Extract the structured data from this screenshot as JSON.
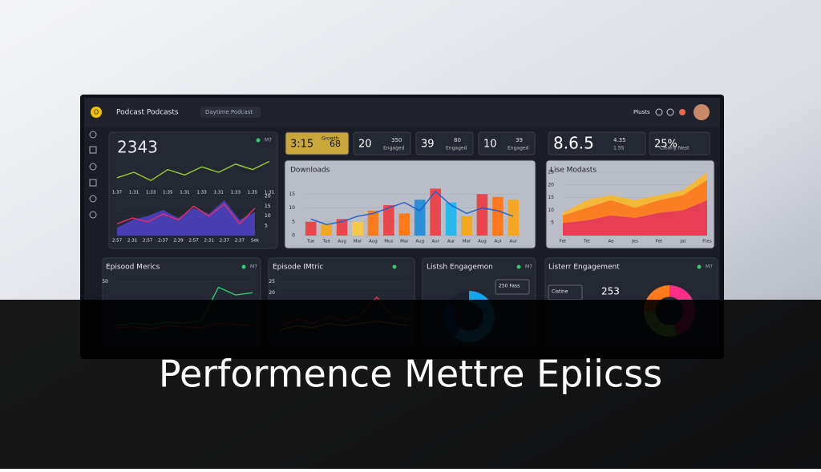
{
  "header": {
    "logo": "O",
    "title": "Podcast Podcasts",
    "search": "Daytime Podcast",
    "user": "Plusts"
  },
  "stats": [
    {
      "value": "3:15",
      "label": "Growth",
      "extra": "68"
    },
    {
      "value": "20",
      "extra": "350",
      "label": "Engaged"
    },
    {
      "value": "39",
      "extra": "80",
      "label": "Engaged"
    },
    {
      "value": "10",
      "extra": "39",
      "label": "Engaged"
    },
    {
      "value": "8.6.5",
      "label": "1.5S",
      "extra": "4.35"
    },
    {
      "value": "25%",
      "label": "Clearly Nest"
    }
  ],
  "chart_data": [
    {
      "type": "line",
      "title": "2343",
      "badge": "M7",
      "categories": [
        "1:37",
        "1:31",
        "1:33",
        "1:35",
        "1:31",
        "1:33",
        "1:31",
        "1:33",
        "1:35",
        "1:31"
      ],
      "series": [
        {
          "color": "#9acd32",
          "values": [
            3,
            5,
            2,
            6,
            4,
            7,
            5,
            8,
            6,
            9
          ]
        }
      ],
      "ylim": [
        0,
        10
      ]
    },
    {
      "type": "area",
      "categories": [
        "2:57",
        "2:31",
        "2:57",
        "2:37",
        "2:39",
        "2:57",
        "2:31",
        "2:37",
        "2:37",
        "Sek"
      ],
      "series": [
        {
          "color": "#4b3fb8",
          "fill": true,
          "values": [
            4,
            8,
            10,
            13,
            9,
            14,
            11,
            18,
            8,
            12
          ]
        },
        {
          "color": "#e0306a",
          "values": [
            6,
            9,
            7,
            11,
            8,
            15,
            10,
            16,
            6,
            14
          ]
        }
      ],
      "ylim": [
        0,
        20
      ],
      "yticks": [
        5,
        10,
        15,
        20
      ]
    },
    {
      "type": "bar",
      "title": "Downloads",
      "categories": [
        "Tue",
        "Tue",
        "Aug",
        "Mar",
        "Aug",
        "Mus",
        "Mar",
        "Aug",
        "Aur",
        "Aur",
        "Mar",
        "Aug",
        "Aul",
        "Aur"
      ],
      "series": [
        {
          "colors": [
            "#e8474c",
            "#f5a623",
            "#e8474c",
            "#f7c948",
            "#ff7a1a",
            "#e8474c",
            "#ff7a1a",
            "#2a8fd6",
            "#e8474c",
            "#29b6e8",
            "#f5a623",
            "#e8474c",
            "#ff7a1a",
            "#f5a623"
          ],
          "values": [
            5,
            4,
            6,
            5,
            9,
            11,
            8,
            13,
            17,
            12,
            7,
            15,
            14,
            13
          ]
        },
        {
          "color": "#1f5fd1",
          "line": true,
          "values": [
            6,
            4,
            5,
            7,
            8,
            10,
            12,
            9,
            16,
            11,
            8,
            10,
            9,
            7
          ]
        }
      ],
      "ylim": [
        0,
        20
      ],
      "yticks": [
        0,
        5,
        10,
        15
      ]
    },
    {
      "type": "area",
      "title": "Lise Modasts",
      "stacked": true,
      "categories": [
        "Fet",
        "Tet",
        "Ae",
        "Jes",
        "Fet",
        "Jat",
        "Ftes"
      ],
      "series": [
        {
          "color": "#e8384f",
          "fill": true,
          "values": [
            5,
            6,
            8,
            7,
            9,
            10,
            14
          ]
        },
        {
          "color": "#ff7a1a",
          "fill": true,
          "values": [
            3,
            5,
            6,
            4,
            5,
            6,
            8
          ]
        },
        {
          "color": "#f7b731",
          "fill": true,
          "values": [
            1,
            3,
            2,
            3,
            2,
            2,
            3
          ]
        }
      ],
      "ylim": [
        0,
        25
      ],
      "yticks": [
        5,
        10,
        15,
        20,
        25
      ]
    },
    {
      "type": "line",
      "title": "Episood Merics",
      "badge": "M7",
      "series": [
        {
          "color": "#2ecc71",
          "values": [
            10,
            12,
            11,
            13,
            12,
            15,
            45,
            38,
            40
          ]
        },
        {
          "color": "#e0306a",
          "values": [
            8,
            9,
            7,
            10,
            9,
            8,
            12,
            11,
            10
          ]
        }
      ],
      "ylim": [
        0,
        60
      ],
      "yticks": [
        50
      ]
    },
    {
      "type": "line",
      "title": "Episode IMtric",
      "series": [
        {
          "color": "#e8384f",
          "values": [
            5,
            8,
            6,
            9,
            7,
            10,
            18,
            9,
            8
          ]
        },
        {
          "color": "#f5a623",
          "values": [
            3,
            5,
            4,
            6,
            5,
            6,
            7,
            6,
            5
          ]
        }
      ],
      "ylim": [
        0,
        30
      ],
      "yticks": [
        20,
        25
      ]
    },
    {
      "type": "pie",
      "title": "Listsh Engagemon",
      "badge": "M7",
      "legend": "250 Fass",
      "values": [
        60,
        25,
        15
      ],
      "colors": [
        "#1aa3e8",
        "#0b4d8c",
        "#1d2230"
      ]
    },
    {
      "type": "pie",
      "title": "Listerr Engagement",
      "badge": "M7",
      "legend": "Cistine",
      "total": "253",
      "values": [
        45,
        30,
        25
      ],
      "colors": [
        "#ff2d8a",
        "#9be564",
        "#ff7a1a"
      ]
    }
  ],
  "caption": "Performence Mettre Epiicss"
}
